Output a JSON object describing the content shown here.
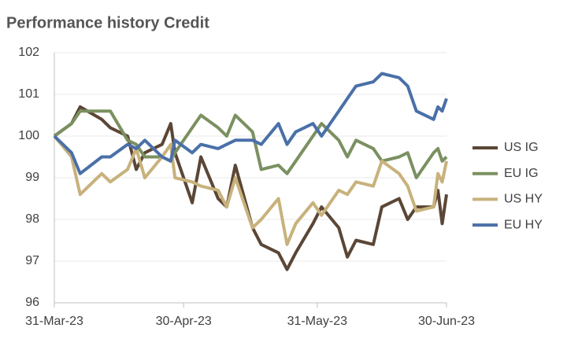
{
  "chart_data": {
    "type": "line",
    "title": "Performance history Credit",
    "x": [
      "2023-03-31",
      "2023-04-04",
      "2023-04-06",
      "2023-04-11",
      "2023-04-13",
      "2023-04-17",
      "2023-04-19",
      "2023-04-21",
      "2023-04-25",
      "2023-04-27",
      "2023-04-28",
      "2023-05-02",
      "2023-05-04",
      "2023-05-08",
      "2023-05-10",
      "2023-05-12",
      "2023-05-16",
      "2023-05-18",
      "2023-05-22",
      "2023-05-24",
      "2023-05-26",
      "2023-05-30",
      "2023-06-01",
      "2023-06-05",
      "2023-06-07",
      "2023-06-09",
      "2023-06-13",
      "2023-06-15",
      "2023-06-19",
      "2023-06-21",
      "2023-06-23",
      "2023-06-27",
      "2023-06-28",
      "2023-06-29",
      "2023-06-30"
    ],
    "series": [
      {
        "name": "US IG",
        "color": "#5b4636",
        "values": [
          100,
          100.3,
          100.7,
          100.4,
          100.2,
          100.0,
          99.2,
          99.6,
          99.8,
          100.3,
          99.6,
          98.4,
          99.5,
          98.5,
          98.3,
          99.3,
          97.8,
          97.4,
          97.2,
          96.8,
          97.2,
          97.9,
          98.3,
          97.8,
          97.1,
          97.5,
          97.4,
          98.3,
          98.5,
          98.0,
          98.3,
          98.3,
          98.7,
          97.9,
          98.6
        ]
      },
      {
        "name": "EU IG",
        "color": "#7b9060",
        "values": [
          100,
          100.3,
          100.6,
          100.6,
          100.6,
          99.9,
          99.8,
          99.5,
          99.5,
          99.4,
          99.6,
          100.2,
          100.5,
          100.2,
          100.0,
          100.5,
          100.1,
          99.2,
          99.3,
          99.1,
          99.4,
          100.0,
          100.3,
          99.9,
          99.5,
          99.9,
          99.7,
          99.4,
          99.5,
          99.6,
          99.0,
          99.6,
          99.7,
          99.4,
          99.5
        ]
      },
      {
        "name": "US HY",
        "color": "#c8b27c",
        "values": [
          100,
          99.5,
          98.6,
          99.1,
          98.9,
          99.2,
          99.7,
          99.0,
          99.5,
          99.8,
          99.0,
          98.9,
          98.8,
          98.7,
          98.3,
          99.0,
          97.8,
          98.0,
          98.5,
          97.4,
          97.9,
          98.4,
          98.1,
          98.7,
          98.6,
          98.9,
          98.8,
          99.4,
          99.1,
          98.8,
          98.2,
          98.3,
          99.1,
          98.9,
          99.4
        ]
      },
      {
        "name": "EU HY",
        "color": "#4a70a8",
        "values": [
          100,
          99.6,
          99.1,
          99.5,
          99.5,
          99.8,
          99.7,
          99.9,
          99.5,
          99.4,
          99.9,
          99.6,
          99.8,
          99.7,
          99.8,
          99.9,
          99.9,
          99.8,
          100.3,
          99.8,
          100.1,
          100.3,
          100.0,
          100.6,
          100.9,
          101.2,
          101.3,
          101.5,
          101.4,
          101.2,
          100.6,
          100.4,
          100.7,
          100.6,
          100.9
        ]
      }
    ],
    "xlim": [
      "2023-03-31",
      "2023-06-30"
    ],
    "xticks": [
      {
        "value": "2023-03-31",
        "label": "31-Mar-23"
      },
      {
        "value": "2023-04-30",
        "label": "30-Apr-23"
      },
      {
        "value": "2023-05-31",
        "label": "31-May-23"
      },
      {
        "value": "2023-06-30",
        "label": "30-Jun-23"
      }
    ],
    "ylim": [
      96,
      102
    ],
    "yticks": [
      96,
      97,
      98,
      99,
      100,
      101,
      102
    ],
    "grid": true,
    "legend": "right"
  }
}
